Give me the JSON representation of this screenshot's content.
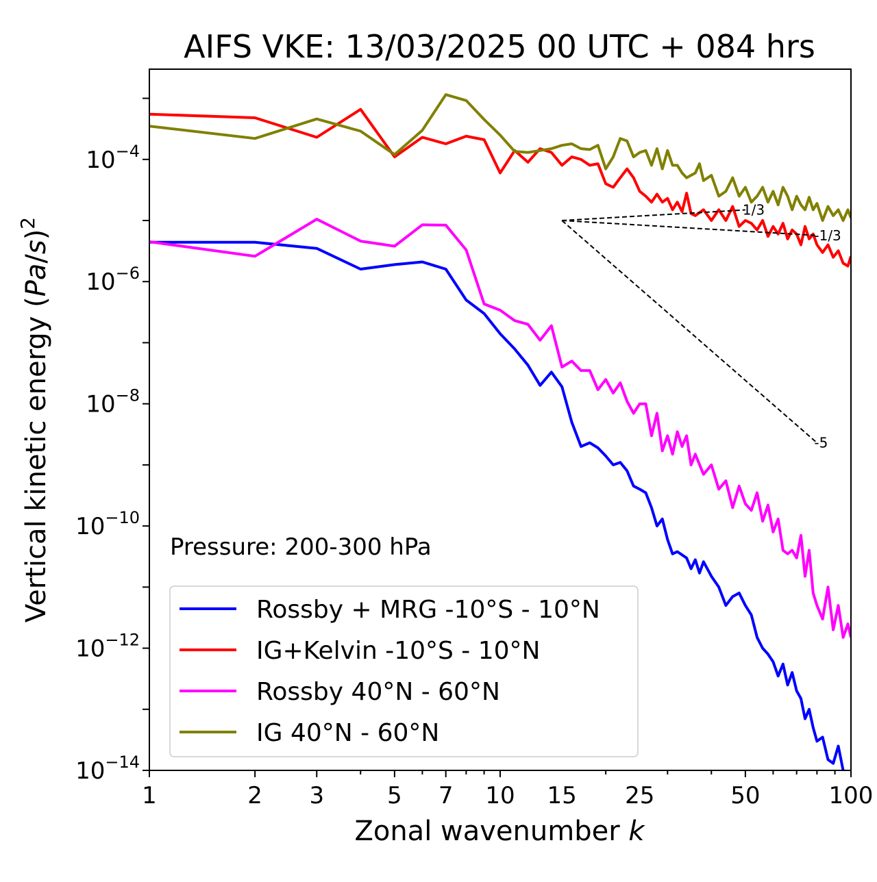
{
  "chart_data": {
    "type": "line",
    "title": "AIFS VKE: 13/03/2025 00 UTC + 084 hrs",
    "xlabel": "Zonal wavenumber k",
    "ylabel": "Vertical kinetic energy (Pa/s)^2",
    "xscale": "log",
    "yscale": "log",
    "xlim": [
      1,
      100
    ],
    "ylim": [
      1e-14,
      0.003
    ],
    "x_ticks": [
      1,
      2,
      3,
      5,
      7,
      10,
      15,
      25,
      50,
      100
    ],
    "x_tick_labels": [
      "1",
      "2",
      "3",
      "5",
      "7",
      "10",
      "15",
      "25",
      "50",
      "100"
    ],
    "y_ticks": [
      {
        "value": 0.0001,
        "base": "10",
        "exp": "−4"
      },
      {
        "value": 1e-06,
        "base": "10",
        "exp": "−6"
      },
      {
        "value": 1e-08,
        "base": "10",
        "exp": "−8"
      },
      {
        "value": 1e-10,
        "base": "10",
        "exp": "−10"
      },
      {
        "value": 1e-12,
        "base": "10",
        "exp": "−12"
      },
      {
        "value": 1e-14,
        "base": "10",
        "exp": "−14"
      }
    ],
    "annotation": "Pressure: 200-300 hPa",
    "legend_position": "lower-left",
    "grid": false,
    "series": [
      {
        "name": "Rossby + MRG -10°S - 10°N",
        "color": "#0000ff",
        "points": [
          [
            1,
            4.4e-06
          ],
          [
            2,
            4.4e-06
          ],
          [
            3,
            3.5e-06
          ],
          [
            4,
            1.6e-06
          ],
          [
            5,
            1.9e-06
          ],
          [
            6,
            2.1e-06
          ],
          [
            7,
            1.6e-06
          ],
          [
            8,
            5e-07
          ],
          [
            9,
            3e-07
          ],
          [
            10,
            1.4e-07
          ],
          [
            11,
            7.9e-08
          ],
          [
            12,
            4.3e-08
          ],
          [
            13,
            2e-08
          ],
          [
            14,
            3.3e-08
          ],
          [
            15,
            1.9e-08
          ],
          [
            16,
            5e-09
          ],
          [
            17,
            2e-09
          ],
          [
            18,
            2.3e-09
          ],
          [
            19,
            1.9e-09
          ],
          [
            20,
            1.4e-09
          ],
          [
            21,
            1e-09
          ],
          [
            22,
            1.1e-09
          ],
          [
            23,
            8e-10
          ],
          [
            24,
            4.5e-10
          ],
          [
            25,
            4e-10
          ],
          [
            26,
            3.5e-10
          ],
          [
            27,
            2e-10
          ],
          [
            28,
            1e-10
          ],
          [
            29,
            1.3e-10
          ],
          [
            30,
            6e-11
          ],
          [
            31,
            3.5e-11
          ],
          [
            32,
            3.8e-11
          ],
          [
            34,
            3e-11
          ],
          [
            35,
            2e-11
          ],
          [
            36,
            2.8e-11
          ],
          [
            37,
            1.7e-11
          ],
          [
            38,
            2.6e-11
          ],
          [
            40,
            1.5e-11
          ],
          [
            42,
            1e-11
          ],
          [
            44,
            5e-12
          ],
          [
            46,
            7e-12
          ],
          [
            48,
            8e-12
          ],
          [
            50,
            5e-12
          ],
          [
            52,
            3.5e-12
          ],
          [
            54,
            1.5e-12
          ],
          [
            56,
            1e-12
          ],
          [
            58,
            8e-13
          ],
          [
            60,
            6e-13
          ],
          [
            62,
            3.5e-13
          ],
          [
            64,
            5.5e-13
          ],
          [
            66,
            2.5e-13
          ],
          [
            68,
            4e-13
          ],
          [
            70,
            2e-13
          ],
          [
            72,
            1.5e-13
          ],
          [
            74,
            7e-14
          ],
          [
            76,
            1e-13
          ],
          [
            78,
            5e-14
          ],
          [
            80,
            3e-14
          ],
          [
            83,
            3.5e-14
          ],
          [
            86,
            1.5e-14
          ],
          [
            89,
            1.3e-14
          ],
          [
            92,
            2.5e-14
          ],
          [
            95,
            1e-14
          ],
          [
            100,
            8e-15
          ]
        ]
      },
      {
        "name": "IG+Kelvin -10°S - 10°N",
        "color": "#ff0000",
        "points": [
          [
            1,
            0.00055
          ],
          [
            2,
            0.00048
          ],
          [
            3,
            0.00023
          ],
          [
            4,
            0.00066
          ],
          [
            5,
            0.00011
          ],
          [
            6,
            0.00023
          ],
          [
            7,
            0.00018
          ],
          [
            8,
            0.00024
          ],
          [
            9,
            0.00021
          ],
          [
            10,
            6e-05
          ],
          [
            11,
            0.00014
          ],
          [
            12,
            9e-05
          ],
          [
            13,
            0.00015
          ],
          [
            14,
            0.00013
          ],
          [
            15,
            8e-05
          ],
          [
            16,
            0.00011
          ],
          [
            17,
            0.0001
          ],
          [
            18,
            8e-05
          ],
          [
            19,
            8.5e-05
          ],
          [
            20,
            4e-05
          ],
          [
            21,
            3.5e-05
          ],
          [
            22,
            5e-05
          ],
          [
            23,
            7e-05
          ],
          [
            24,
            5e-05
          ],
          [
            25,
            3e-05
          ],
          [
            26,
            2.5e-05
          ],
          [
            27,
            2e-05
          ],
          [
            28,
            2.7e-05
          ],
          [
            29,
            2e-05
          ],
          [
            30,
            2.3e-05
          ],
          [
            31,
            1.5e-05
          ],
          [
            32,
            2e-05
          ],
          [
            33,
            1.4e-05
          ],
          [
            34,
            2.8e-05
          ],
          [
            35,
            1.3e-05
          ],
          [
            36,
            1.2e-05
          ],
          [
            38,
            1.5e-05
          ],
          [
            40,
            1e-05
          ],
          [
            42,
            1.5e-05
          ],
          [
            44,
            1e-05
          ],
          [
            46,
            1.7e-05
          ],
          [
            48,
            8e-06
          ],
          [
            50,
            1e-05
          ],
          [
            52,
            9e-06
          ],
          [
            54,
            7e-06
          ],
          [
            56,
            1e-05
          ],
          [
            58,
            5.5e-06
          ],
          [
            60,
            8e-06
          ],
          [
            62,
            6e-06
          ],
          [
            64,
            9e-06
          ],
          [
            66,
            5e-06
          ],
          [
            68,
            7e-06
          ],
          [
            70,
            6e-06
          ],
          [
            72,
            4e-06
          ],
          [
            74,
            8e-06
          ],
          [
            76,
            5e-06
          ],
          [
            78,
            6e-06
          ],
          [
            80,
            4e-06
          ],
          [
            83,
            3e-06
          ],
          [
            86,
            4e-06
          ],
          [
            89,
            2.5e-06
          ],
          [
            92,
            3.2e-06
          ],
          [
            95,
            2e-06
          ],
          [
            98,
            1.8e-06
          ],
          [
            100,
            2.6e-06
          ]
        ]
      },
      {
        "name": "Rossby 40°N - 60°N",
        "color": "#ff00ff",
        "points": [
          [
            1,
            4.5e-06
          ],
          [
            2,
            2.6e-06
          ],
          [
            3,
            1.05e-05
          ],
          [
            4,
            4.6e-06
          ],
          [
            5,
            3.8e-06
          ],
          [
            6,
            8.5e-06
          ],
          [
            7,
            8.4e-06
          ],
          [
            8,
            3.3e-06
          ],
          [
            9,
            4.3e-07
          ],
          [
            10,
            3.4e-07
          ],
          [
            11,
            2.3e-07
          ],
          [
            12,
            2e-07
          ],
          [
            13,
            1.1e-07
          ],
          [
            14,
            1.9e-07
          ],
          [
            15,
            4e-08
          ],
          [
            16,
            5e-08
          ],
          [
            17,
            3.5e-08
          ],
          [
            18,
            3.5e-08
          ],
          [
            19,
            1.7e-08
          ],
          [
            20,
            2.5e-08
          ],
          [
            21,
            1.5e-08
          ],
          [
            22,
            2.2e-08
          ],
          [
            23,
            1.1e-08
          ],
          [
            24,
            7e-09
          ],
          [
            25,
            1e-08
          ],
          [
            26,
            1e-08
          ],
          [
            27,
            3e-09
          ],
          [
            28,
            7e-09
          ],
          [
            29,
            1.7e-09
          ],
          [
            30,
            3e-09
          ],
          [
            31,
            1.5e-09
          ],
          [
            32,
            3.5e-09
          ],
          [
            33,
            2e-09
          ],
          [
            34,
            3e-09
          ],
          [
            35,
            1e-09
          ],
          [
            36,
            1.5e-09
          ],
          [
            38,
            7e-10
          ],
          [
            40,
            1e-09
          ],
          [
            42,
            4e-10
          ],
          [
            44,
            5.5e-10
          ],
          [
            46,
            2e-10
          ],
          [
            48,
            4.5e-10
          ],
          [
            50,
            2.3e-10
          ],
          [
            52,
            1.8e-10
          ],
          [
            54,
            3.5e-10
          ],
          [
            56,
            1.2e-10
          ],
          [
            58,
            2.2e-10
          ],
          [
            60,
            8e-11
          ],
          [
            62,
            1.3e-10
          ],
          [
            64,
            4e-11
          ],
          [
            66,
            3.5e-11
          ],
          [
            68,
            4e-11
          ],
          [
            70,
            3e-11
          ],
          [
            72,
            7e-11
          ],
          [
            74,
            1.5e-11
          ],
          [
            76,
            4e-11
          ],
          [
            78,
            8e-12
          ],
          [
            80,
            5e-12
          ],
          [
            83,
            3e-12
          ],
          [
            86,
            1e-11
          ],
          [
            89,
            2e-12
          ],
          [
            92,
            5e-12
          ],
          [
            95,
            1.5e-12
          ],
          [
            98,
            2.5e-12
          ],
          [
            100,
            1.5e-12
          ]
        ]
      },
      {
        "name": "IG 40°N - 60°N",
        "color": "#808000",
        "points": [
          [
            1,
            0.00035
          ],
          [
            2,
            0.00022
          ],
          [
            3,
            0.00046
          ],
          [
            4,
            0.00029
          ],
          [
            5,
            0.00012
          ],
          [
            6,
            0.0003
          ],
          [
            7,
            0.00115
          ],
          [
            8,
            0.00092
          ],
          [
            9,
            0.00045
          ],
          [
            10,
            0.00025
          ],
          [
            11,
            0.000135
          ],
          [
            12,
            0.00013
          ],
          [
            13,
            0.00014
          ],
          [
            14,
            0.00015
          ],
          [
            15,
            0.00017
          ],
          [
            16,
            0.00018
          ],
          [
            17,
            0.00015
          ],
          [
            18,
            0.000145
          ],
          [
            19,
            0.00017
          ],
          [
            20,
            7e-05
          ],
          [
            21,
            0.00011
          ],
          [
            22,
            0.00022
          ],
          [
            23,
            0.0002
          ],
          [
            24,
            0.00011
          ],
          [
            25,
            0.00013
          ],
          [
            26,
            0.00014
          ],
          [
            27,
            8e-05
          ],
          [
            28,
            0.00015
          ],
          [
            29,
            7e-05
          ],
          [
            30,
            0.00014
          ],
          [
            31,
            8e-05
          ],
          [
            32,
            8e-05
          ],
          [
            33,
            6e-05
          ],
          [
            34,
            5e-05
          ],
          [
            35,
            5.5e-05
          ],
          [
            36,
            6e-05
          ],
          [
            37,
            8.5e-05
          ],
          [
            38,
            4.5e-05
          ],
          [
            40,
            5.5e-05
          ],
          [
            42,
            2.5e-05
          ],
          [
            44,
            3e-05
          ],
          [
            46,
            5e-05
          ],
          [
            48,
            2.5e-05
          ],
          [
            50,
            3.5e-05
          ],
          [
            52,
            2e-05
          ],
          [
            54,
            2.5e-05
          ],
          [
            56,
            3.5e-05
          ],
          [
            58,
            2e-05
          ],
          [
            60,
            3e-05
          ],
          [
            62,
            1.8e-05
          ],
          [
            64,
            3.5e-05
          ],
          [
            66,
            2.5e-05
          ],
          [
            68,
            1.5e-05
          ],
          [
            70,
            2.5e-05
          ],
          [
            72,
            1.8e-05
          ],
          [
            74,
            1.5e-05
          ],
          [
            76,
            2.4e-05
          ],
          [
            78,
            1.5e-05
          ],
          [
            80,
            1.9e-05
          ],
          [
            83,
            1e-05
          ],
          [
            86,
            1.7e-05
          ],
          [
            89,
            1.2e-05
          ],
          [
            92,
            1.5e-05
          ],
          [
            95,
            1e-05
          ],
          [
            98,
            1.5e-05
          ],
          [
            100,
            1.1e-05
          ]
        ]
      }
    ],
    "reference_lines": [
      {
        "label": "-1/3",
        "k0": 15,
        "v0": 1e-05,
        "k1": 80,
        "v1": 5.7e-06
      },
      {
        "label": "1/3",
        "k0": 15,
        "v0": 1e-05,
        "k1": 50,
        "v1": 1.49e-05
      },
      {
        "label": "-5",
        "k0": 15,
        "v0": 1e-05,
        "k1": 80,
        "v1": 2.3e-09
      }
    ]
  }
}
